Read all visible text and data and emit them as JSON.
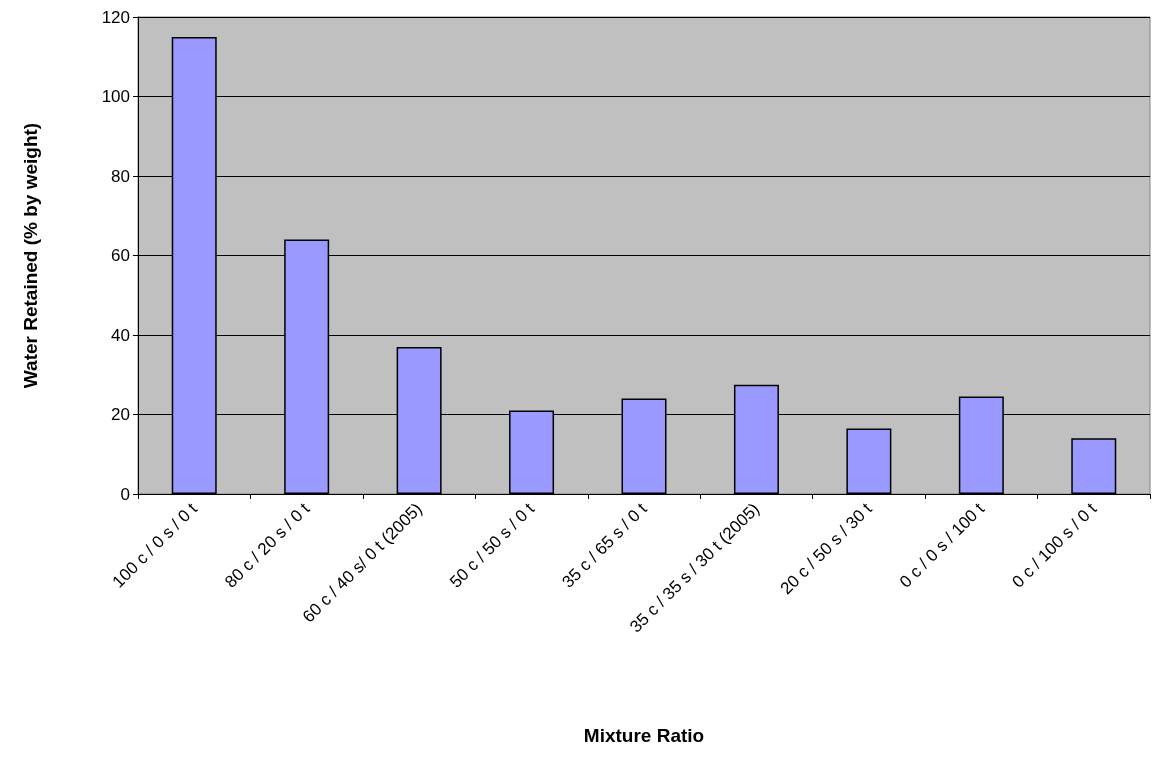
{
  "chart_data": {
    "type": "bar",
    "xlabel": "Mixture Ratio",
    "ylabel": "Water Retained (% by weight)",
    "categories": [
      "100 c / 0 s / 0 t",
      "80 c / 20 s / 0 t",
      "60 c / 40 s/ 0 t (2005)",
      "50 c / 50 s / 0 t",
      "35 c / 65 s / 0 t",
      "35 c / 35 s / 30 t (2005)",
      "20 c / 50 s / 30 t",
      "0 c / 0 s / 100 t",
      "0 c / 100 s / 0 t"
    ],
    "values": [
      115,
      64,
      37,
      21,
      24,
      27.5,
      16.5,
      24.5,
      14
    ],
    "color": "#9999ff",
    "ylim": [
      0,
      120
    ],
    "yticks": [
      0,
      20,
      40,
      60,
      80,
      100,
      120
    ],
    "grid": "y"
  }
}
